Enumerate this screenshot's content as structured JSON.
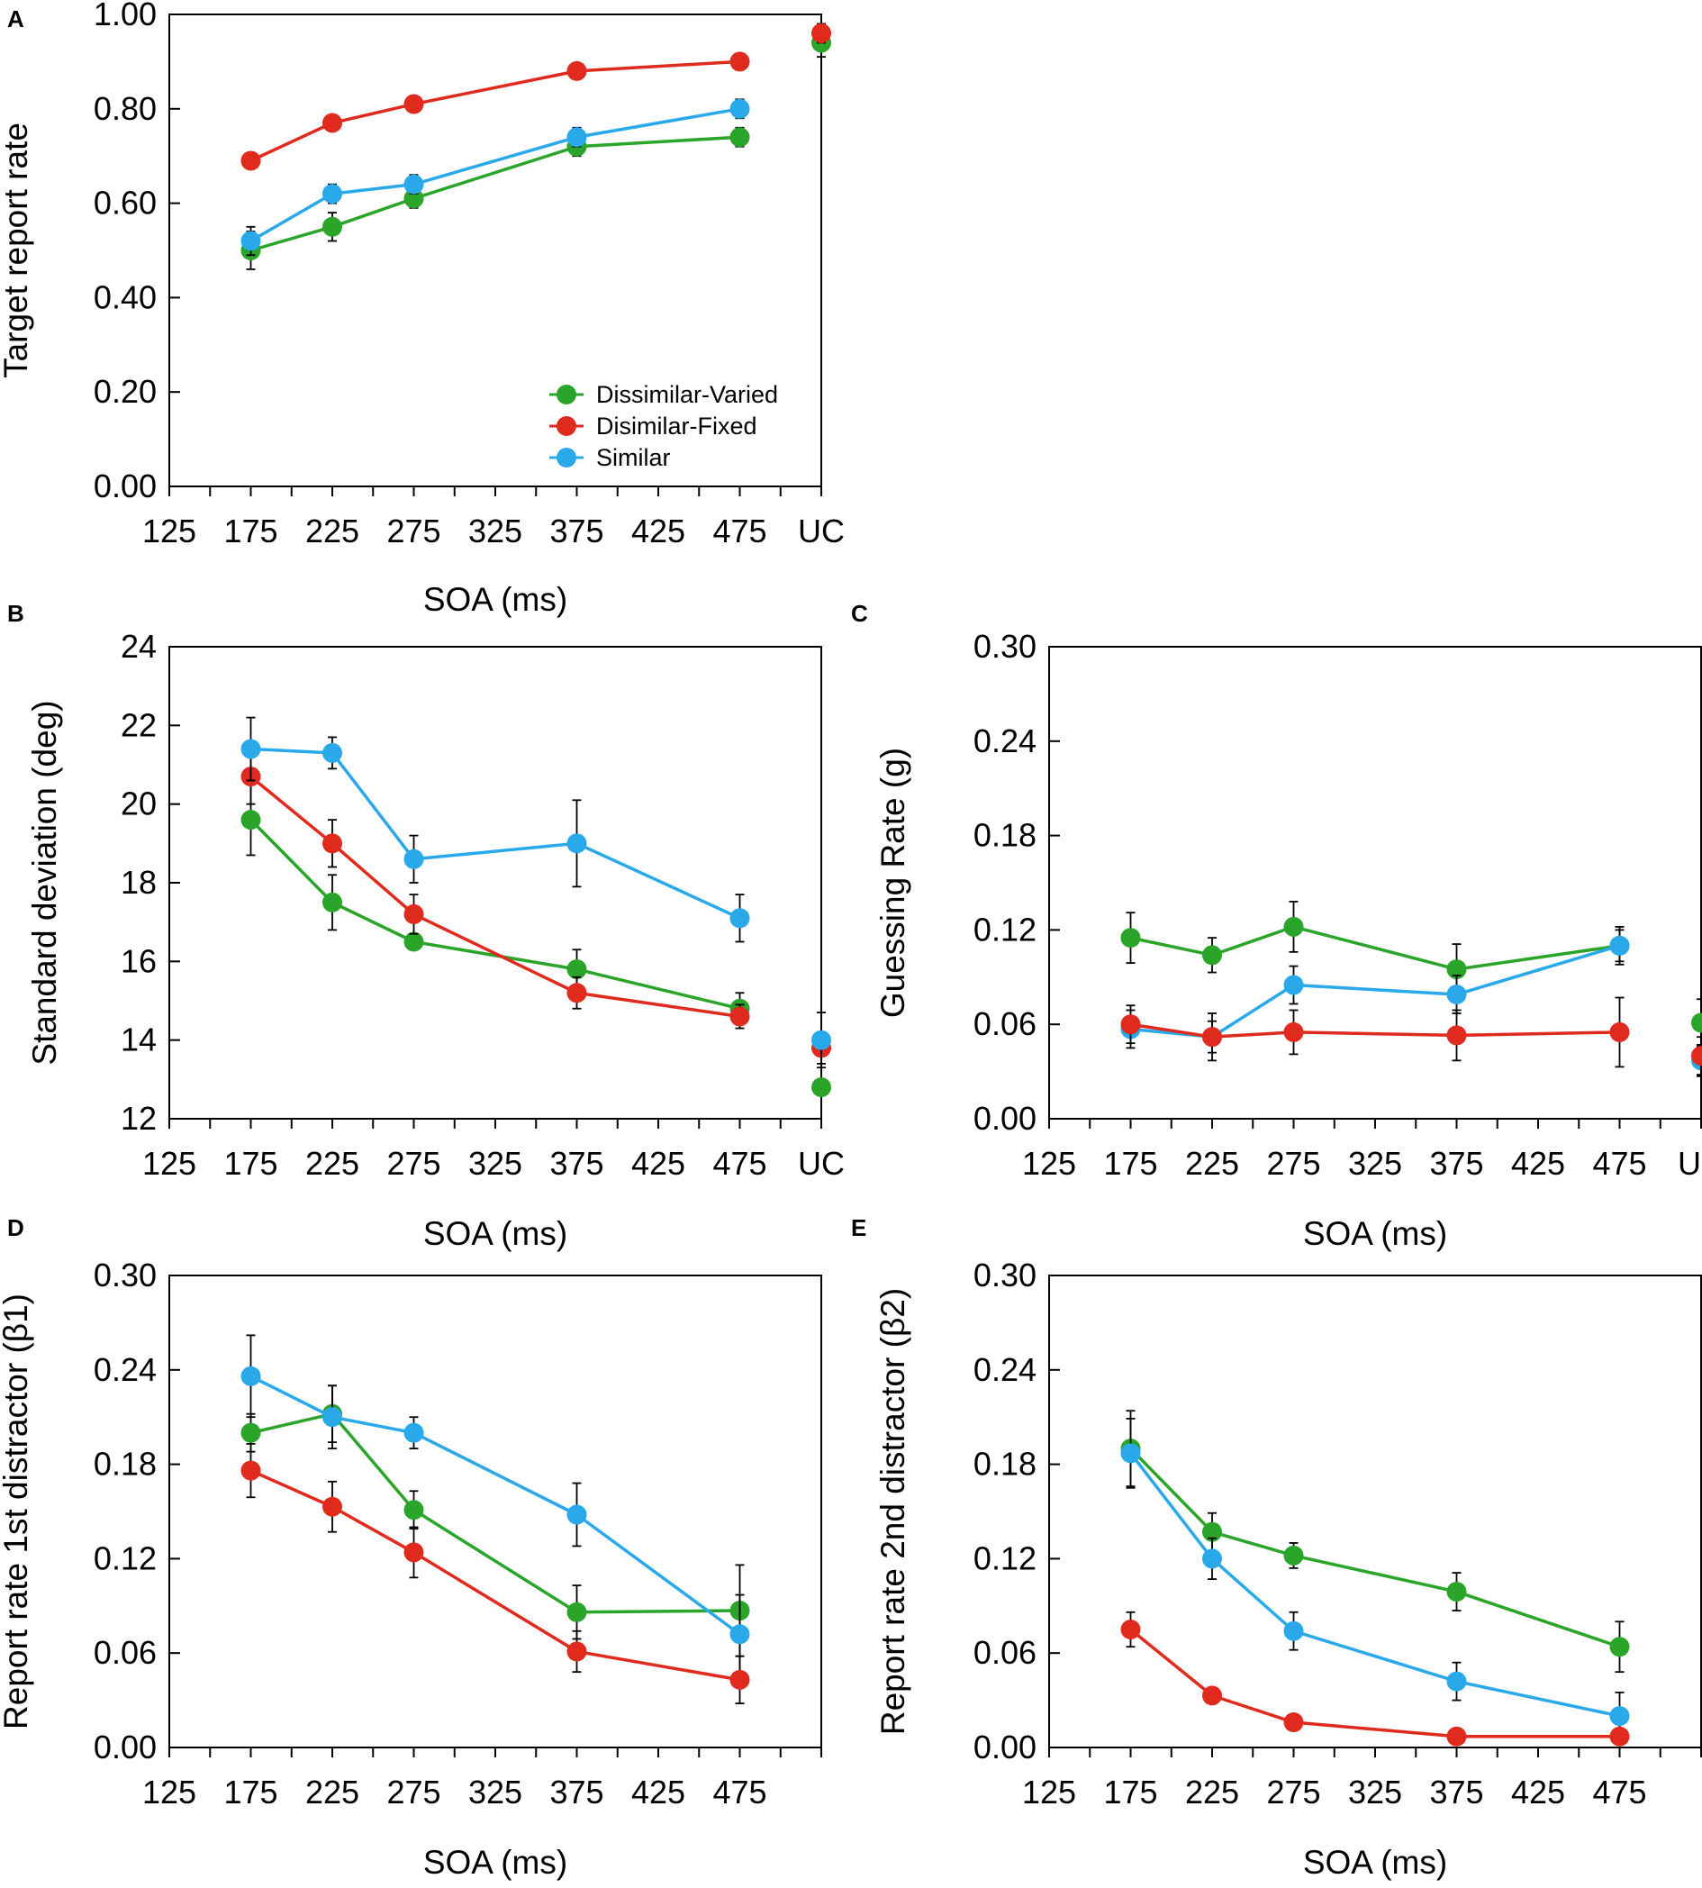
{
  "colors": {
    "Dissimilar-Varied": "#2aa52a",
    "Disimilar-Fixed": "#e02a1e",
    "Similar": "#29a9ea"
  },
  "chart_data": [
    {
      "panel": "A",
      "type": "line",
      "xlabel": "SOA (ms)",
      "ylabel": "Target report rate",
      "x_ticks": [
        "125",
        "175",
        "225",
        "275",
        "325",
        "375",
        "425",
        "475",
        "UC"
      ],
      "y_ticks": [
        "0.00",
        "0.20",
        "0.40",
        "0.60",
        "0.80",
        "1.00"
      ],
      "xlim": [
        125,
        525
      ],
      "ylim": [
        0,
        1
      ],
      "legend": {
        "position": "bottom-right",
        "entries": [
          "Dissimilar-Varied",
          "Disimilar-Fixed",
          "Similar"
        ]
      },
      "series": [
        {
          "name": "Dissimilar-Varied",
          "x": [
            175,
            225,
            275,
            375,
            475
          ],
          "values": [
            0.5,
            0.55,
            0.61,
            0.72,
            0.74
          ],
          "err": [
            0.04,
            0.03,
            0.02,
            0.02,
            0.02
          ],
          "uc": 0.94,
          "uc_err": 0.03
        },
        {
          "name": "Disimilar-Fixed",
          "x": [
            175,
            225,
            275,
            375,
            475
          ],
          "values": [
            0.69,
            0.77,
            0.81,
            0.88,
            0.9
          ],
          "err": [
            0.01,
            0.01,
            0.01,
            0.01,
            0.01
          ],
          "uc": 0.96,
          "uc_err": 0.02
        },
        {
          "name": "Similar",
          "x": [
            175,
            225,
            275,
            375,
            475
          ],
          "values": [
            0.52,
            0.62,
            0.64,
            0.74,
            0.8
          ],
          "err": [
            0.03,
            0.02,
            0.02,
            0.02,
            0.02
          ],
          "uc": null,
          "uc_err": null
        }
      ]
    },
    {
      "panel": "B",
      "type": "line",
      "xlabel": "SOA (ms)",
      "ylabel": "Standard deviation (deg)",
      "x_ticks": [
        "125",
        "175",
        "225",
        "275",
        "325",
        "375",
        "425",
        "475",
        "UC"
      ],
      "y_ticks": [
        "12",
        "14",
        "16",
        "18",
        "20",
        "22",
        "24"
      ],
      "xlim": [
        125,
        525
      ],
      "ylim": [
        12,
        24
      ],
      "series": [
        {
          "name": "Dissimilar-Varied",
          "x": [
            175,
            225,
            275,
            375,
            475
          ],
          "values": [
            19.6,
            17.5,
            16.5,
            15.8,
            14.8
          ],
          "err": [
            0.9,
            0.7,
            0.2,
            0.5,
            0.4
          ],
          "uc": 12.8,
          "uc_err": 0.2
        },
        {
          "name": "Disimilar-Fixed",
          "x": [
            175,
            225,
            275,
            375,
            475
          ],
          "values": [
            20.7,
            19.0,
            17.2,
            15.2,
            14.6
          ],
          "err": [
            0.7,
            0.6,
            0.5,
            0.4,
            0.3
          ],
          "uc": 13.8,
          "uc_err": 0.4
        },
        {
          "name": "Similar",
          "x": [
            175,
            225,
            275,
            375,
            475
          ],
          "values": [
            21.4,
            21.3,
            18.6,
            19.0,
            17.1
          ],
          "err": [
            0.8,
            0.4,
            0.6,
            1.1,
            0.6
          ],
          "uc": 14.0,
          "uc_err": 0.7
        }
      ]
    },
    {
      "panel": "C",
      "type": "line",
      "xlabel": "SOA (ms)",
      "ylabel": "Guessing Rate (g)",
      "x_ticks": [
        "125",
        "175",
        "225",
        "275",
        "325",
        "375",
        "425",
        "475",
        "UC"
      ],
      "y_ticks": [
        "0.00",
        "0.06",
        "0.12",
        "0.18",
        "0.24",
        "0.30"
      ],
      "xlim": [
        125,
        525
      ],
      "ylim": [
        0,
        0.3
      ],
      "series": [
        {
          "name": "Dissimilar-Varied",
          "x": [
            175,
            225,
            275,
            375,
            475
          ],
          "values": [
            0.115,
            0.104,
            0.122,
            0.095,
            0.11
          ],
          "err": [
            0.016,
            0.011,
            0.016,
            0.016,
            0.012
          ],
          "uc": 0.061,
          "uc_err": 0.015
        },
        {
          "name": "Similar",
          "x": [
            175,
            225,
            275,
            375,
            475
          ],
          "values": [
            0.057,
            0.052,
            0.085,
            0.079,
            0.11
          ],
          "err": [
            0.012,
            0.01,
            0.012,
            0.012,
            0.01
          ],
          "uc": 0.037,
          "uc_err": 0.01
        },
        {
          "name": "Disimilar-Fixed",
          "x": [
            175,
            225,
            275,
            375,
            475
          ],
          "values": [
            0.06,
            0.052,
            0.055,
            0.053,
            0.055
          ],
          "err": [
            0.012,
            0.015,
            0.014,
            0.016,
            0.022
          ],
          "uc": 0.04,
          "uc_err": 0.012
        }
      ]
    },
    {
      "panel": "D",
      "type": "line",
      "xlabel": "SOA (ms)",
      "ylabel": "Report rate 1st distractor (β1)",
      "x_ticks": [
        "125",
        "175",
        "225",
        "275",
        "325",
        "375",
        "425",
        "475"
      ],
      "y_ticks": [
        "0.00",
        "0.06",
        "0.12",
        "0.18",
        "0.24",
        "0.30"
      ],
      "xlim": [
        125,
        525
      ],
      "ylim": [
        0,
        0.3
      ],
      "series": [
        {
          "name": "Dissimilar-Varied",
          "x": [
            175,
            225,
            275,
            375,
            475
          ],
          "values": [
            0.2,
            0.212,
            0.151,
            0.086,
            0.087
          ],
          "err": [
            0.012,
            0.018,
            0.012,
            0.017,
            0.029
          ],
          "uc": null,
          "uc_err": null
        },
        {
          "name": "Similar",
          "x": [
            175,
            225,
            275,
            375,
            475
          ],
          "values": [
            0.236,
            0.21,
            0.2,
            0.148,
            0.072
          ],
          "err": [
            0.026,
            0.02,
            0.01,
            0.02,
            0.025
          ],
          "uc": null,
          "uc_err": null
        },
        {
          "name": "Disimilar-Fixed",
          "x": [
            175,
            225,
            275,
            375,
            475
          ],
          "values": [
            0.176,
            0.153,
            0.124,
            0.061,
            0.043
          ],
          "err": [
            0.017,
            0.016,
            0.016,
            0.013,
            0.015
          ],
          "uc": null,
          "uc_err": null
        }
      ]
    },
    {
      "panel": "E",
      "type": "line",
      "xlabel": "SOA (ms)",
      "ylabel": "Report rate 2nd distractor (β2)",
      "x_ticks": [
        "125",
        "175",
        "225",
        "275",
        "325",
        "375",
        "425",
        "475"
      ],
      "y_ticks": [
        "0.00",
        "0.06",
        "0.12",
        "0.18",
        "0.24",
        "0.30"
      ],
      "xlim": [
        125,
        525
      ],
      "ylim": [
        0,
        0.3
      ],
      "series": [
        {
          "name": "Dissimilar-Varied",
          "x": [
            175,
            225,
            275,
            375,
            475
          ],
          "values": [
            0.19,
            0.137,
            0.122,
            0.099,
            0.064
          ],
          "err": [
            0.024,
            0.012,
            0.008,
            0.012,
            0.016
          ],
          "uc": null,
          "uc_err": null
        },
        {
          "name": "Similar",
          "x": [
            175,
            225,
            275,
            375,
            475
          ],
          "values": [
            0.187,
            0.12,
            0.074,
            0.042,
            0.02
          ],
          "err": [
            0.022,
            0.013,
            0.012,
            0.012,
            0.015
          ],
          "uc": null,
          "uc_err": null
        },
        {
          "name": "Disimilar-Fixed",
          "x": [
            175,
            225,
            275,
            375,
            475
          ],
          "values": [
            0.075,
            0.033,
            0.016,
            0.007,
            0.007
          ],
          "err": [
            0.011,
            0.004,
            0.004,
            0.003,
            0.003
          ],
          "uc": null,
          "uc_err": null
        }
      ]
    }
  ]
}
